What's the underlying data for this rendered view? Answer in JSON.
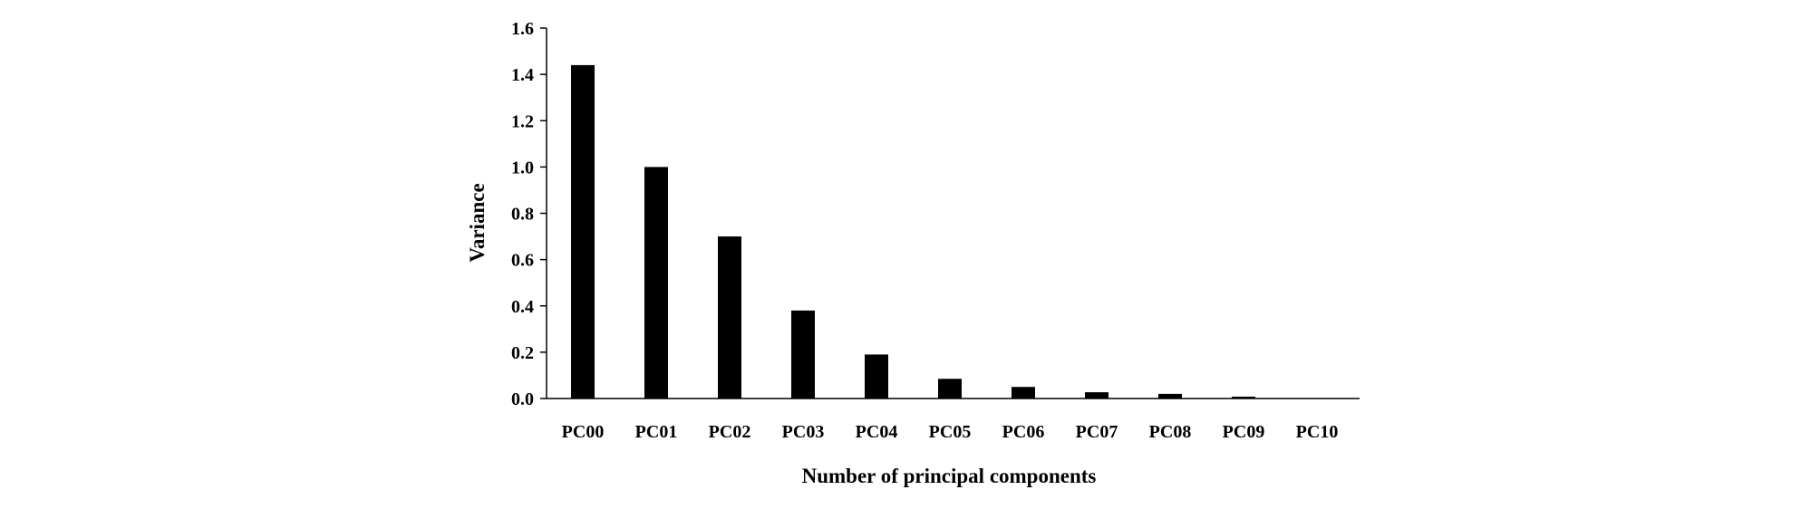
{
  "chart_data": {
    "type": "bar",
    "title": "",
    "xlabel": "Number of principal components",
    "ylabel": "Variance",
    "categories": [
      "PC00",
      "PC01",
      "PC02",
      "PC03",
      "PC04",
      "PC05",
      "PC06",
      "PC07",
      "PC08",
      "PC09",
      "PC10"
    ],
    "values": [
      1.44,
      1.0,
      0.7,
      0.38,
      0.19,
      0.085,
      0.05,
      0.027,
      0.02,
      0.008,
      0.0
    ],
    "ylim": [
      0,
      1.6
    ],
    "yticks": [
      "0.0",
      "0.2",
      "0.4",
      "0.6",
      "0.8",
      "1.0",
      "1.2",
      "1.4",
      "1.6"
    ],
    "grid": false,
    "legend": "none",
    "bar_color": "#000000",
    "axis_color": "#000000"
  }
}
